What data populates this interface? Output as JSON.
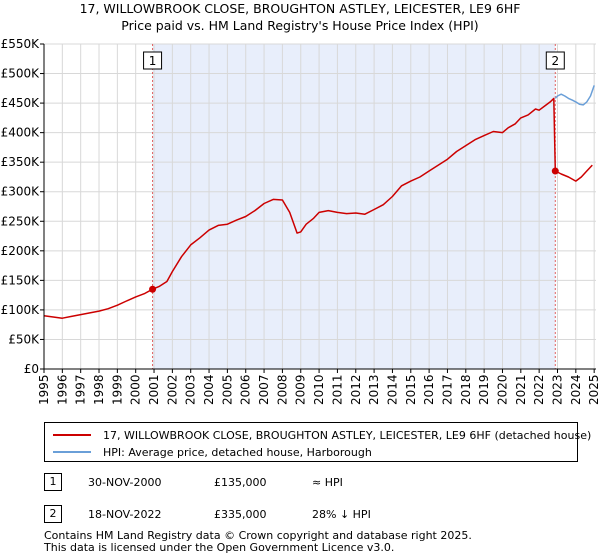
{
  "title": {
    "line1": "17, WILLOWBROOK CLOSE, BROUGHTON ASTLEY, LEICESTER, LE9 6HF",
    "line2": "Price paid vs. HM Land Registry's House Price Index (HPI)"
  },
  "colors": {
    "property_line": "#cc0000",
    "hpi_line": "#6a9fd8",
    "shade": "#e8eefb",
    "marker_line": "#e06060",
    "grid": "#d8d8d8"
  },
  "chart_data": {
    "type": "line",
    "title": "17, WILLOWBROOK CLOSE, BROUGHTON ASTLEY, LEICESTER, LE9 6HF",
    "subtitle": "Price paid vs. HM Land Registry's House Price Index (HPI)",
    "xlabel": "",
    "ylabel": "",
    "xlim": [
      1995,
      2025.1
    ],
    "ylim": [
      0,
      550000
    ],
    "x_ticks": [
      1995,
      1996,
      1997,
      1998,
      1999,
      2000,
      2001,
      2002,
      2003,
      2004,
      2005,
      2006,
      2007,
      2008,
      2009,
      2010,
      2011,
      2012,
      2013,
      2014,
      2015,
      2016,
      2017,
      2018,
      2019,
      2020,
      2021,
      2022,
      2023,
      2024,
      2025
    ],
    "y_ticks": [
      0,
      50000,
      100000,
      150000,
      200000,
      250000,
      300000,
      350000,
      400000,
      450000,
      500000,
      550000
    ],
    "y_tick_labels": [
      "£0",
      "£50K",
      "£100K",
      "£150K",
      "£200K",
      "£250K",
      "£300K",
      "£350K",
      "£400K",
      "£450K",
      "£500K",
      "£550K"
    ],
    "grid": true,
    "shaded_region": [
      2000.92,
      2022.88
    ],
    "series": [
      {
        "name": "17, WILLOWBROOK CLOSE, BROUGHTON ASTLEY, LEICESTER, LE9 6HF (detached house)",
        "x": [
          1995,
          1995.5,
          1996,
          1996.5,
          1997,
          1997.5,
          1998,
          1998.5,
          1999,
          1999.5,
          2000,
          2000.5,
          2000.92,
          2001.3,
          2001.7,
          2002,
          2002.5,
          2003,
          2003.5,
          2004,
          2004.5,
          2005,
          2005.5,
          2006,
          2006.5,
          2007,
          2007.5,
          2008,
          2008.4,
          2008.8,
          2009,
          2009.3,
          2009.7,
          2010,
          2010.5,
          2011,
          2011.5,
          2012,
          2012.5,
          2013,
          2013.5,
          2014,
          2014.5,
          2015,
          2015.5,
          2016,
          2016.5,
          2017,
          2017.5,
          2018,
          2018.5,
          2019,
          2019.5,
          2020,
          2020.3,
          2020.7,
          2021,
          2021.4,
          2021.8,
          2022,
          2022.3,
          2022.6,
          2022.8,
          2022.88,
          2023.2,
          2023.6,
          2024,
          2024.3,
          2024.6,
          2024.9
        ],
        "y": [
          90000,
          88000,
          86000,
          89000,
          92000,
          95000,
          98000,
          102000,
          108000,
          115000,
          122000,
          128000,
          135000,
          140000,
          148000,
          165000,
          190000,
          210000,
          222000,
          235000,
          243000,
          245000,
          252000,
          258000,
          268000,
          280000,
          287000,
          286000,
          265000,
          230000,
          232000,
          245000,
          255000,
          265000,
          268000,
          265000,
          263000,
          264000,
          262000,
          270000,
          278000,
          292000,
          310000,
          318000,
          325000,
          335000,
          345000,
          355000,
          368000,
          378000,
          388000,
          395000,
          402000,
          400000,
          408000,
          415000,
          425000,
          430000,
          440000,
          438000,
          445000,
          452000,
          458000,
          335000,
          330000,
          325000,
          318000,
          325000,
          335000,
          345000
        ]
      },
      {
        "name": "HPI: Average price, detached house, Harborough",
        "x": [
          2022.88,
          2023.0,
          2023.2,
          2023.4,
          2023.6,
          2023.8,
          2024.0,
          2024.2,
          2024.4,
          2024.6,
          2024.8,
          2025.0
        ],
        "y": [
          458000,
          462000,
          465000,
          462000,
          458000,
          455000,
          452000,
          448000,
          447000,
          452000,
          462000,
          480000
        ]
      }
    ],
    "sales": [
      {
        "label": "1",
        "x": 2000.92,
        "y": 135000
      },
      {
        "label": "2",
        "x": 2022.88,
        "y": 335000
      }
    ]
  },
  "legend": {
    "property_label": "17, WILLOWBROOK CLOSE, BROUGHTON ASTLEY, LEICESTER, LE9 6HF (detached house)",
    "hpi_label": "HPI: Average price, detached house, Harborough"
  },
  "sales_table": [
    {
      "num": "1",
      "date": "30-NOV-2000",
      "price": "£135,000",
      "hpi": "≈ HPI"
    },
    {
      "num": "2",
      "date": "18-NOV-2022",
      "price": "£335,000",
      "hpi": "28% ↓ HPI"
    }
  ],
  "footer": {
    "line1": "Contains HM Land Registry data © Crown copyright and database right 2025.",
    "line2": "This data is licensed under the Open Government Licence v3.0."
  }
}
